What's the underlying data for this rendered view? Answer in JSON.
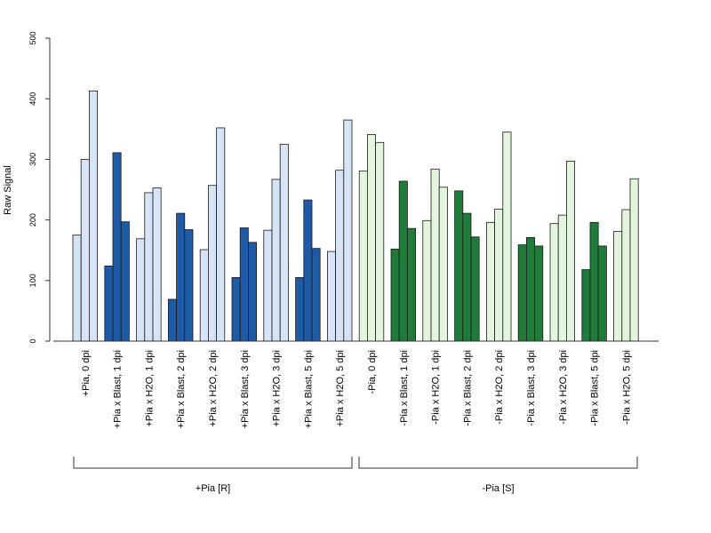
{
  "chart_data": {
    "type": "bar",
    "ylabel": "Raw Signal",
    "ylim": [
      0,
      500
    ],
    "yticks": [
      0,
      100,
      200,
      300,
      400,
      500
    ],
    "categories": [
      "+Pia, 0 dpi",
      "+Pia x Blast, 1 dpi",
      "+Pia x H2O, 1 dpi",
      "+Pia x Blast, 2 dpi",
      "+Pia x H2O, 2 dpi",
      "+Pia x Blast, 3 dpi",
      "+Pia x H2O, 3 dpi",
      "+Pia x Blast, 5 dpi",
      "+Pia x H2O, 5 dpi",
      "-Pia, 0 dpi",
      "-Pia x Blast, 1 dpi",
      "-Pia x H2O, 1 dpi",
      "-Pia x Blast, 2 dpi",
      "-Pia x H2O, 2 dpi",
      "-Pia x Blast, 3 dpi",
      "-Pia x H2O, 3 dpi",
      "-Pia x Blast, 5 dpi",
      "-Pia x H2O, 5 dpi"
    ],
    "values": [
      [
        175,
        300,
        413
      ],
      [
        124,
        311,
        197
      ],
      [
        169,
        245,
        253
      ],
      [
        69,
        211,
        184
      ],
      [
        151,
        257,
        352
      ],
      [
        105,
        187,
        163
      ],
      [
        183,
        267,
        325
      ],
      [
        105,
        233,
        153
      ],
      [
        148,
        282,
        365
      ],
      [
        281,
        341,
        328
      ],
      [
        152,
        264,
        186
      ],
      [
        199,
        284,
        254
      ],
      [
        248,
        211,
        172
      ],
      [
        196,
        218,
        345
      ],
      [
        159,
        171,
        157
      ],
      [
        194,
        208,
        297
      ],
      [
        118,
        196,
        157
      ],
      [
        181,
        217,
        268
      ]
    ],
    "colors": [
      "#d6e4f5",
      "#1f5aa6",
      "#d6e4f5",
      "#1f5aa6",
      "#d6e4f5",
      "#1f5aa6",
      "#d6e4f5",
      "#1f5aa6",
      "#d6e4f5",
      "#e3f5dc",
      "#207a3a",
      "#e3f5dc",
      "#207a3a",
      "#e3f5dc",
      "#207a3a",
      "#e3f5dc",
      "#207a3a",
      "#e3f5dc"
    ],
    "groups": [
      {
        "label": "+Pia [R]",
        "span": [
          0,
          8
        ]
      },
      {
        "label": "-Pia [S]",
        "span": [
          9,
          17
        ]
      }
    ]
  }
}
